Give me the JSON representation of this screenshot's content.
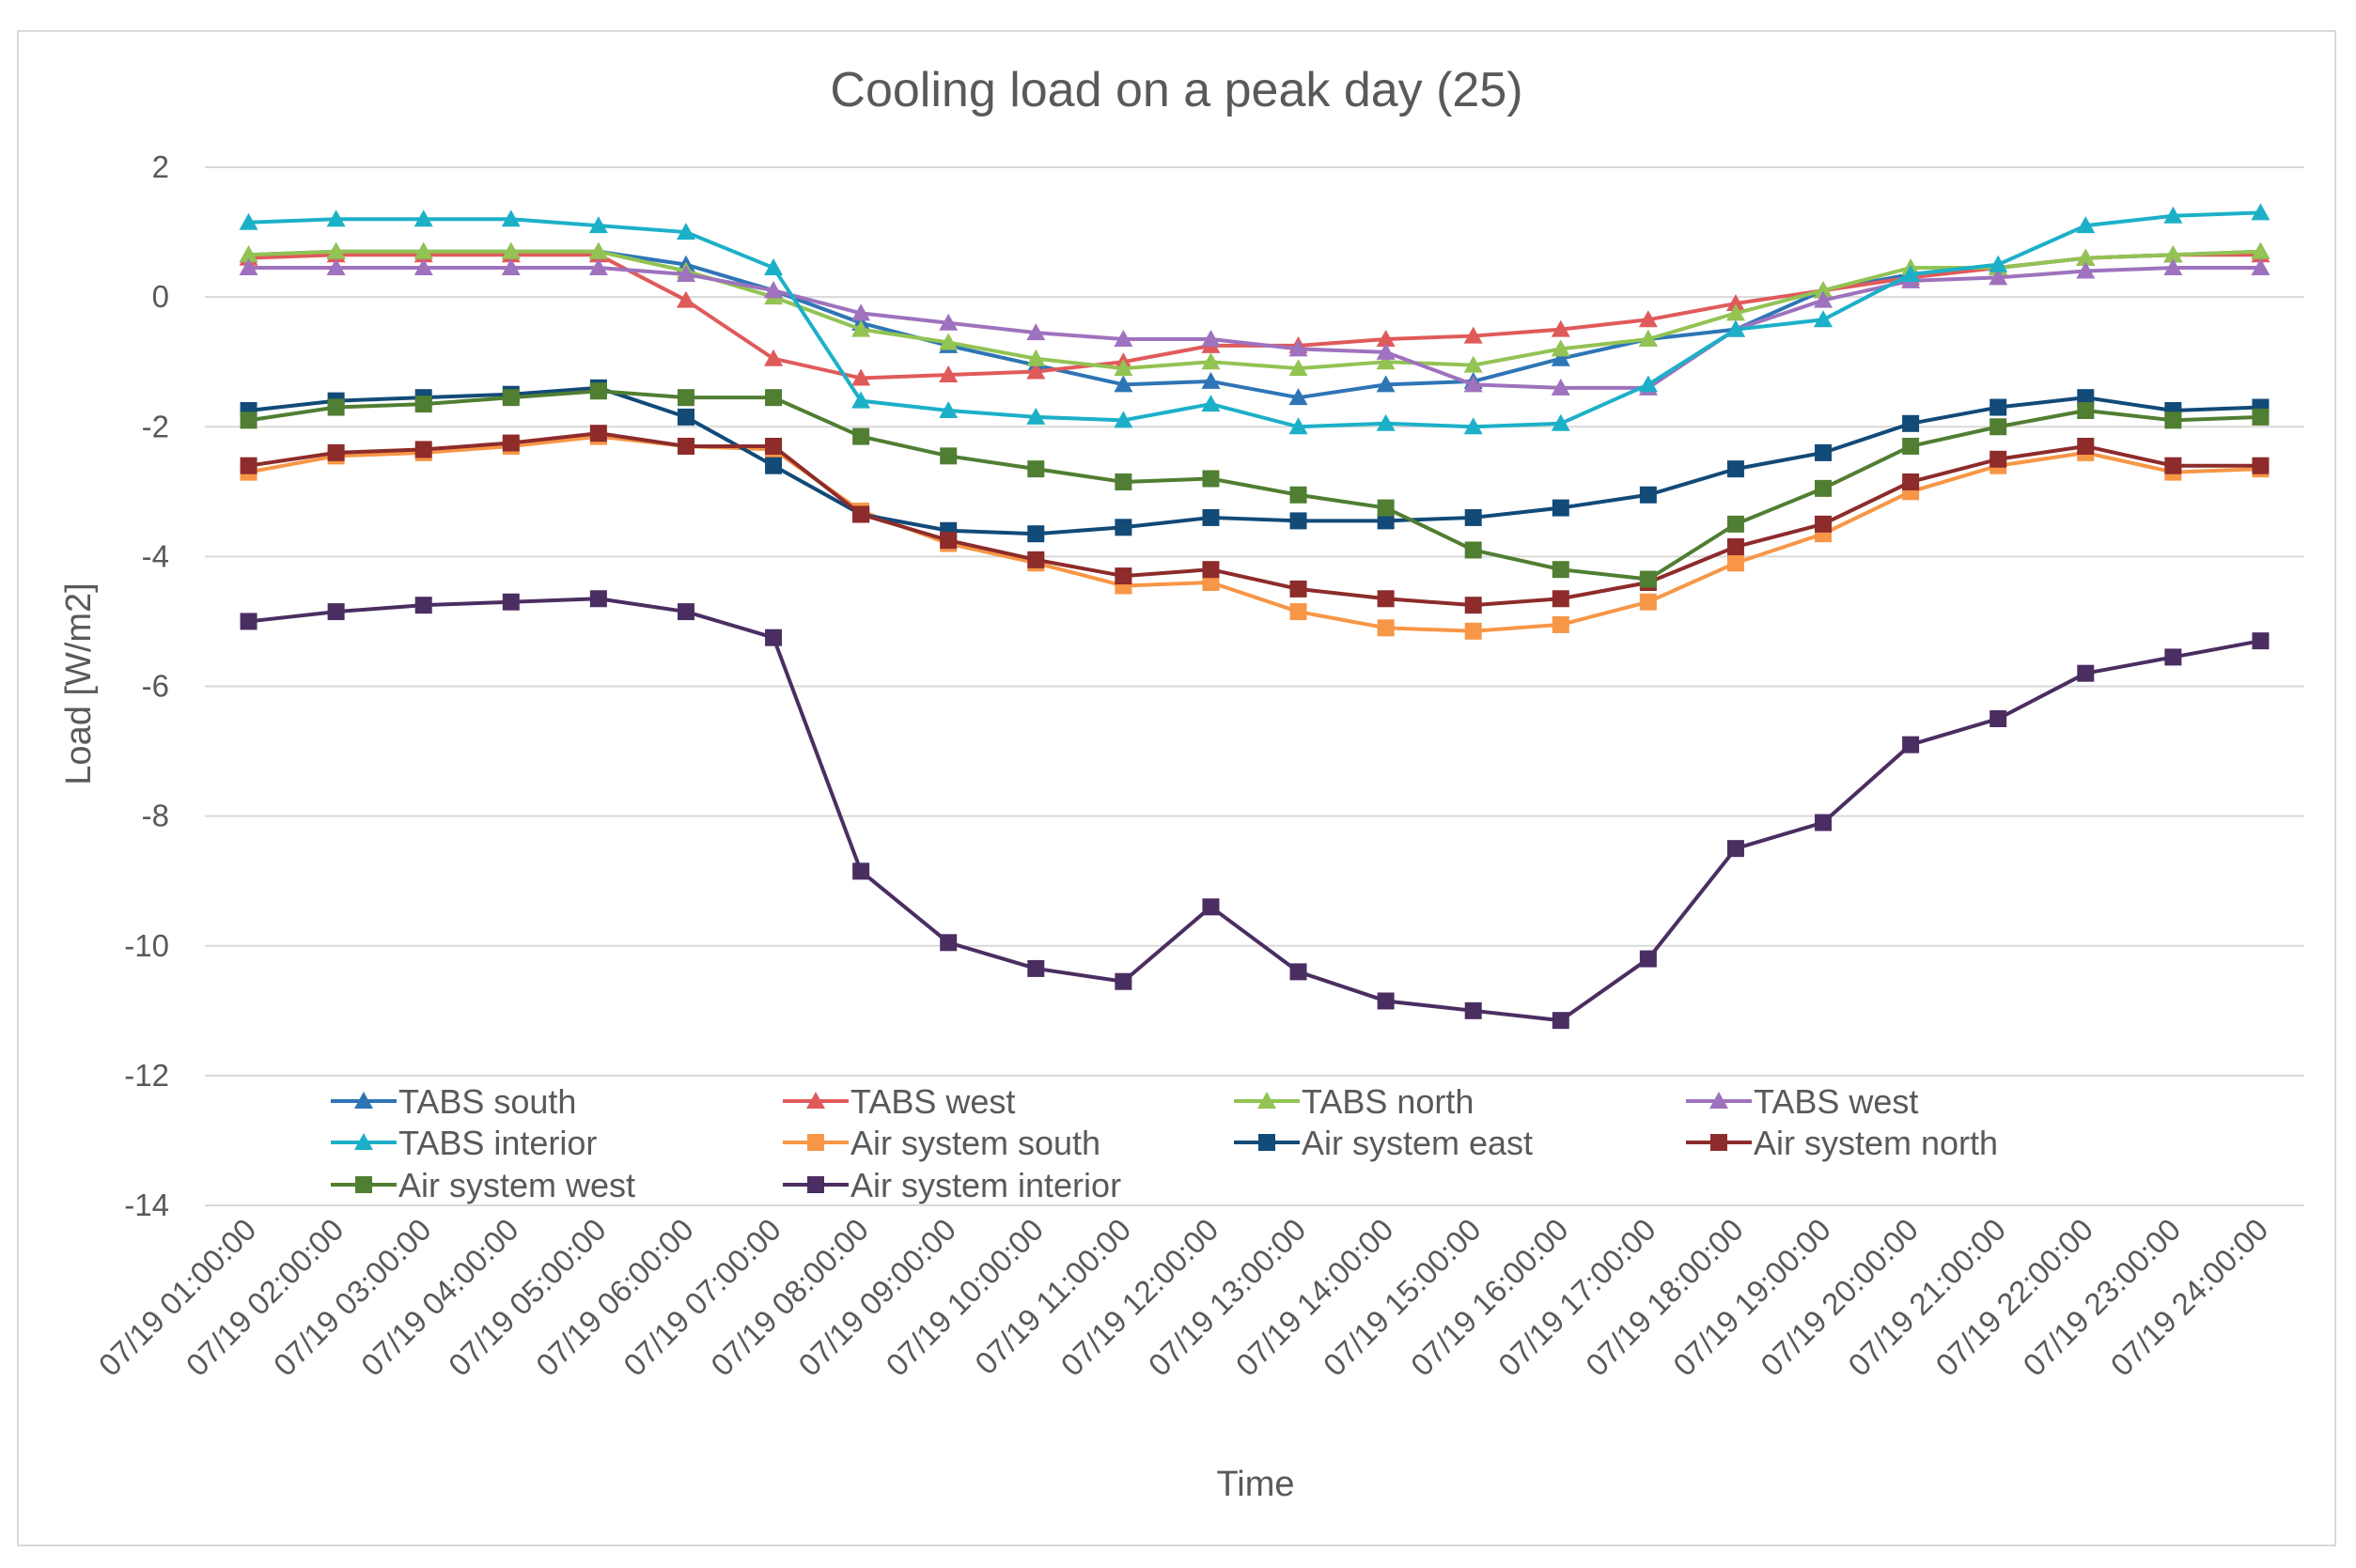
{
  "chart_data": {
    "type": "line",
    "title": "Cooling load on a peak day (25)",
    "xlabel": "Time",
    "ylabel": "Load [W/m2]",
    "ylim": [
      -14,
      2
    ],
    "ytick_step": 2,
    "grid": true,
    "legend_position": "bottom-inside",
    "categories": [
      "07/19  01:00:00",
      "07/19  02:00:00",
      "07/19  03:00:00",
      "07/19  04:00:00",
      "07/19  05:00:00",
      "07/19  06:00:00",
      "07/19  07:00:00",
      "07/19  08:00:00",
      "07/19  09:00:00",
      "07/19  10:00:00",
      "07/19  11:00:00",
      "07/19  12:00:00",
      "07/19  13:00:00",
      "07/19  14:00:00",
      "07/19  15:00:00",
      "07/19  16:00:00",
      "07/19  17:00:00",
      "07/19  18:00:00",
      "07/19  19:00:00",
      "07/19  20:00:00",
      "07/19  21:00:00",
      "07/19  22:00:00",
      "07/19  23:00:00",
      "07/19  24:00:00"
    ],
    "series": [
      {
        "name": "TABS south",
        "color": "#2E75B6",
        "marker": "triangle",
        "values": [
          0.65,
          0.7,
          0.7,
          0.7,
          0.7,
          0.5,
          0.1,
          -0.4,
          -0.75,
          -1.05,
          -1.35,
          -1.3,
          -1.55,
          -1.35,
          -1.3,
          -0.95,
          -0.65,
          -0.5,
          0.1,
          0.35,
          0.45,
          0.6,
          0.65,
          0.7
        ]
      },
      {
        "name": "TABS west",
        "color": "#E05A5A",
        "marker": "triangle",
        "values": [
          0.6,
          0.65,
          0.65,
          0.65,
          0.65,
          -0.05,
          -0.95,
          -1.25,
          -1.2,
          -1.15,
          -1.0,
          -0.75,
          -0.75,
          -0.65,
          -0.6,
          -0.5,
          -0.35,
          -0.1,
          0.1,
          0.3,
          0.45,
          0.6,
          0.65,
          0.65
        ]
      },
      {
        "name": "TABS north",
        "color": "#92C353",
        "marker": "triangle",
        "values": [
          0.65,
          0.7,
          0.7,
          0.7,
          0.7,
          0.4,
          0.0,
          -0.5,
          -0.7,
          -0.95,
          -1.1,
          -1.0,
          -1.1,
          -1.0,
          -1.05,
          -0.8,
          -0.65,
          -0.25,
          0.1,
          0.45,
          0.45,
          0.6,
          0.65,
          0.7
        ]
      },
      {
        "name": "TABS west",
        "color": "#9E72BE",
        "marker": "triangle",
        "values": [
          0.45,
          0.45,
          0.45,
          0.45,
          0.45,
          0.35,
          0.1,
          -0.25,
          -0.4,
          -0.55,
          -0.65,
          -0.65,
          -0.8,
          -0.85,
          -1.35,
          -1.4,
          -1.4,
          -0.5,
          -0.05,
          0.25,
          0.3,
          0.4,
          0.45,
          0.45
        ]
      },
      {
        "name": "TABS interior",
        "color": "#1CB0C8",
        "marker": "triangle",
        "values": [
          1.15,
          1.2,
          1.2,
          1.2,
          1.1,
          1.0,
          0.45,
          -1.6,
          -1.75,
          -1.85,
          -1.9,
          -1.65,
          -2.0,
          -1.95,
          -2.0,
          -1.95,
          -1.35,
          -0.5,
          -0.35,
          0.35,
          0.5,
          1.1,
          1.25,
          1.3
        ]
      },
      {
        "name": "Air system south",
        "color": "#F79646",
        "marker": "square",
        "values": [
          -2.7,
          -2.45,
          -2.4,
          -2.3,
          -2.15,
          -2.3,
          -2.35,
          -3.3,
          -3.8,
          -4.1,
          -4.45,
          -4.4,
          -4.85,
          -5.1,
          -5.15,
          -5.05,
          -4.7,
          -4.1,
          -3.65,
          -3.0,
          -2.6,
          -2.4,
          -2.7,
          -2.65
        ]
      },
      {
        "name": "Air system east",
        "color": "#124A78",
        "marker": "square",
        "values": [
          -1.75,
          -1.6,
          -1.55,
          -1.5,
          -1.4,
          -1.85,
          -2.6,
          -3.35,
          -3.6,
          -3.65,
          -3.55,
          -3.4,
          -3.45,
          -3.45,
          -3.4,
          -3.25,
          -3.05,
          -2.65,
          -2.4,
          -1.95,
          -1.7,
          -1.55,
          -1.75,
          -1.7
        ]
      },
      {
        "name": "Air system north",
        "color": "#8E2B2B",
        "marker": "square",
        "values": [
          -2.6,
          -2.4,
          -2.35,
          -2.25,
          -2.1,
          -2.3,
          -2.3,
          -3.35,
          -3.75,
          -4.05,
          -4.3,
          -4.2,
          -4.5,
          -4.65,
          -4.75,
          -4.65,
          -4.4,
          -3.85,
          -3.5,
          -2.85,
          -2.5,
          -2.3,
          -2.6,
          -2.6
        ]
      },
      {
        "name": "Air system west",
        "color": "#507E32",
        "marker": "square",
        "values": [
          -1.9,
          -1.7,
          -1.65,
          -1.55,
          -1.45,
          -1.55,
          -1.55,
          -2.15,
          -2.45,
          -2.65,
          -2.85,
          -2.8,
          -3.05,
          -3.25,
          -3.9,
          -4.2,
          -4.35,
          -3.5,
          -2.95,
          -2.3,
          -2.0,
          -1.75,
          -1.9,
          -1.85
        ]
      },
      {
        "name": "Air system interior",
        "color": "#4A2E62",
        "marker": "square",
        "values": [
          -5.0,
          -4.85,
          -4.75,
          -4.7,
          -4.65,
          -4.85,
          -5.25,
          -8.85,
          -9.95,
          -10.35,
          -10.55,
          -9.4,
          -10.4,
          -10.85,
          -11.0,
          -11.15,
          -10.2,
          -8.5,
          -8.1,
          -6.9,
          -6.5,
          -5.8,
          -5.55,
          -5.3
        ]
      }
    ]
  }
}
